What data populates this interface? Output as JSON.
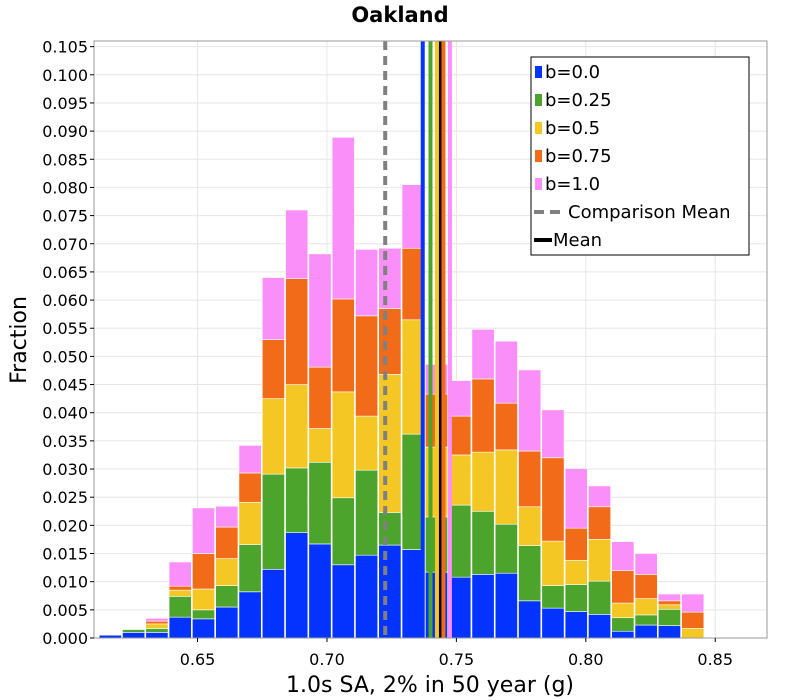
{
  "chart_data": {
    "type": "bar",
    "stacked": true,
    "title": "Oakland",
    "xlabel": "1.0s SA, 2% in 50 year (g)",
    "ylabel": "Fraction",
    "xlim": [
      0.61,
      0.87
    ],
    "ylim": [
      0.0,
      0.106
    ],
    "x_ticks": [
      "0.65",
      "0.70",
      "0.75",
      "0.80",
      "0.85"
    ],
    "y_ticks": [
      "0.000",
      "0.005",
      "0.010",
      "0.015",
      "0.020",
      "0.025",
      "0.030",
      "0.035",
      "0.040",
      "0.045",
      "0.050",
      "0.055",
      "0.060",
      "0.065",
      "0.070",
      "0.075",
      "0.080",
      "0.085",
      "0.090",
      "0.095",
      "0.100",
      "0.105"
    ],
    "grid": true,
    "legend_position": "top-right",
    "bin_width": 0.009,
    "bin_starts": [
      0.612,
      0.621,
      0.63,
      0.639,
      0.648,
      0.657,
      0.666,
      0.675,
      0.684,
      0.693,
      0.702,
      0.711,
      0.72,
      0.729,
      0.738,
      0.747,
      0.756,
      0.765,
      0.774,
      0.783,
      0.792,
      0.801,
      0.81,
      0.819,
      0.828,
      0.837,
      0.846,
      0.855
    ],
    "series": [
      {
        "name": "b=0.0",
        "color": "#0433ff",
        "values": [
          0.0005,
          0.001,
          0.001,
          0.0037,
          0.0034,
          0.0055,
          0.0082,
          0.0122,
          0.0187,
          0.0167,
          0.013,
          0.0147,
          0.0165,
          0.0157,
          0.0117,
          0.0108,
          0.0113,
          0.0115,
          0.0066,
          0.0053,
          0.0047,
          0.0042,
          0.0012,
          0.0023,
          0.0022,
          0.0,
          0.0,
          0.0
        ]
      },
      {
        "name": "b=0.25",
        "color": "#4ca42c",
        "values": [
          0.0,
          0.0005,
          0.0007,
          0.0037,
          0.0016,
          0.0038,
          0.0084,
          0.0169,
          0.0115,
          0.0145,
          0.0119,
          0.0151,
          0.0058,
          0.0205,
          0.0098,
          0.0128,
          0.0112,
          0.0087,
          0.0098,
          0.004,
          0.0048,
          0.0059,
          0.0024,
          0.0018,
          0.0029,
          0.0,
          0.0,
          0.0
        ]
      },
      {
        "name": "b=0.5",
        "color": "#f4c724",
        "values": [
          0.0,
          0.0,
          0.0008,
          0.0011,
          0.0037,
          0.0048,
          0.0075,
          0.0134,
          0.0148,
          0.006,
          0.0188,
          0.0096,
          0.0245,
          0.0203,
          0.0124,
          0.0089,
          0.0105,
          0.0132,
          0.0069,
          0.0079,
          0.0043,
          0.0074,
          0.0026,
          0.0029,
          0.0008,
          0.0017,
          0.0,
          0.0
        ]
      },
      {
        "name": "b=0.75",
        "color": "#f26b18",
        "values": [
          0.0,
          0.0,
          0.0005,
          0.0007,
          0.0063,
          0.0056,
          0.0052,
          0.0105,
          0.0188,
          0.0109,
          0.0165,
          0.0178,
          0.0117,
          0.0127,
          0.0094,
          0.0069,
          0.013,
          0.0083,
          0.0099,
          0.0148,
          0.0057,
          0.0058,
          0.0058,
          0.0043,
          0.0007,
          0.0029,
          0.0,
          0.0
        ]
      },
      {
        "name": "b=1.0",
        "color": "#fb8ff9",
        "values": [
          0.0,
          0.0,
          0.0005,
          0.0043,
          0.0081,
          0.0037,
          0.0049,
          0.011,
          0.0122,
          0.0201,
          0.0287,
          0.0118,
          0.0107,
          0.0113,
          0.0053,
          0.0063,
          0.0088,
          0.011,
          0.0144,
          0.0085,
          0.0106,
          0.0037,
          0.0051,
          0.0037,
          0.0012,
          0.0032,
          0.0,
          0.0
        ]
      }
    ],
    "vertical_lines": [
      {
        "name": "Comparison Mean",
        "x": 0.7225,
        "color": "#808080",
        "style": "dashed"
      },
      {
        "name": "Mean",
        "x": 0.7435,
        "color": "#000000",
        "style": "solid"
      },
      {
        "name": "",
        "x": 0.737,
        "color": "#0433ff",
        "style": "solid"
      },
      {
        "name": "",
        "x": 0.74,
        "color": "#4ca42c",
        "style": "solid"
      },
      {
        "name": "",
        "x": 0.7425,
        "color": "#f4c724",
        "style": "solid"
      },
      {
        "name": "",
        "x": 0.745,
        "color": "#f26b18",
        "style": "solid"
      },
      {
        "name": "",
        "x": 0.7475,
        "color": "#fb8ff9",
        "style": "solid"
      }
    ]
  }
}
